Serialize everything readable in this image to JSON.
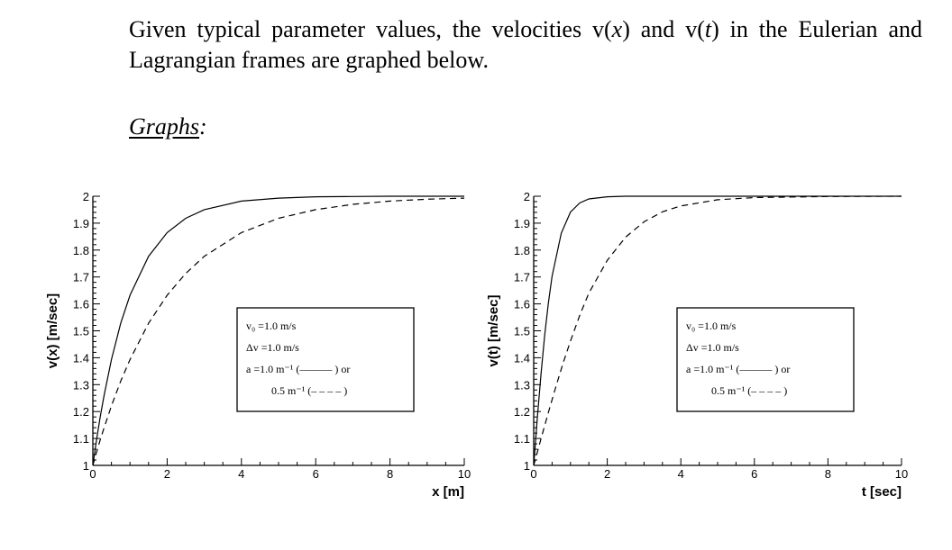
{
  "text": {
    "para_line1_a": "Given typical parameter values, the velocities v(",
    "para_var_x": "x",
    "para_line1_b": ") and v(",
    "para_var_t": "t",
    "para_line1_c": ") in the",
    "para_line2": "Eulerian and Lagrangian frames are graphed below.",
    "heading_word": "Graphs",
    "heading_colon": ":"
  },
  "chart_data": [
    {
      "type": "line",
      "xlabel": "x [m]",
      "ylabel": "v(x) [m/sec]",
      "xlim": [
        0,
        10
      ],
      "ylim": [
        1,
        2
      ],
      "xticks": [
        "0",
        "2",
        "4",
        "6",
        "8",
        "10"
      ],
      "yticks": [
        "1",
        "1.1",
        "1.2",
        "1.3",
        "1.4",
        "1.5",
        "1.6",
        "1.7",
        "1.8",
        "1.9",
        "2"
      ],
      "grid": false,
      "legend": {
        "placement": "center",
        "lines": [
          "v₀ =1.0 m/s",
          "Δv =1.0 m/s",
          "a =1.0 m⁻¹ (——— ) or",
          "0.5 m⁻¹ (– – – – )"
        ]
      },
      "series": [
        {
          "style": "solid",
          "x": [
            0,
            0.1,
            0.2,
            0.3,
            0.5,
            0.75,
            1,
            1.5,
            2,
            2.5,
            3,
            4,
            5,
            6,
            7,
            8,
            9,
            10
          ],
          "y": [
            1.0,
            1.095,
            1.181,
            1.259,
            1.393,
            1.528,
            1.632,
            1.777,
            1.865,
            1.918,
            1.95,
            1.982,
            1.993,
            1.998,
            1.999,
            2.0,
            2.0,
            2.0
          ]
        },
        {
          "style": "dashed",
          "x": [
            0,
            0.1,
            0.2,
            0.3,
            0.5,
            0.75,
            1,
            1.5,
            2,
            2.5,
            3,
            4,
            5,
            6,
            7,
            8,
            9,
            10
          ],
          "y": [
            1.0,
            1.049,
            1.095,
            1.139,
            1.221,
            1.313,
            1.393,
            1.528,
            1.632,
            1.713,
            1.777,
            1.865,
            1.918,
            1.95,
            1.97,
            1.982,
            1.989,
            1.993
          ]
        }
      ]
    },
    {
      "type": "line",
      "xlabel": "t [sec]",
      "ylabel": "v(t) [m/sec]",
      "xlim": [
        0,
        10
      ],
      "ylim": [
        1,
        2
      ],
      "xticks": [
        "0",
        "2",
        "4",
        "6",
        "8",
        "10"
      ],
      "yticks": [
        "1",
        "1.1",
        "1.2",
        "1.3",
        "1.4",
        "1.5",
        "1.6",
        "1.7",
        "1.8",
        "1.9",
        "2"
      ],
      "grid": false,
      "legend": {
        "placement": "center-right",
        "lines": [
          "v₀ =1.0 m/s",
          "Δv =1.0 m/s",
          "a =1.0 m⁻¹ (——— ) or",
          "0.5 m⁻¹ (– – – – )"
        ]
      },
      "series": [
        {
          "style": "solid",
          "x": [
            0,
            0.1,
            0.2,
            0.3,
            0.4,
            0.5,
            0.75,
            1,
            1.25,
            1.5,
            2,
            2.5,
            3,
            3.5,
            4,
            5,
            6,
            8,
            10
          ],
          "y": [
            1.0,
            1.18,
            1.342,
            1.484,
            1.604,
            1.703,
            1.863,
            1.941,
            1.975,
            1.99,
            1.998,
            2.0,
            2.0,
            2.0,
            2.0,
            2.0,
            2.0,
            2.0,
            2.0
          ]
        },
        {
          "style": "dashed",
          "x": [
            0,
            0.2,
            0.4,
            0.6,
            0.8,
            1,
            1.25,
            1.5,
            2,
            2.5,
            3,
            3.5,
            4,
            5,
            6,
            8,
            10
          ],
          "y": [
            1.0,
            1.1,
            1.197,
            1.291,
            1.38,
            1.462,
            1.557,
            1.64,
            1.762,
            1.848,
            1.905,
            1.942,
            1.964,
            1.987,
            1.995,
            1.999,
            2.0
          ]
        }
      ]
    }
  ]
}
